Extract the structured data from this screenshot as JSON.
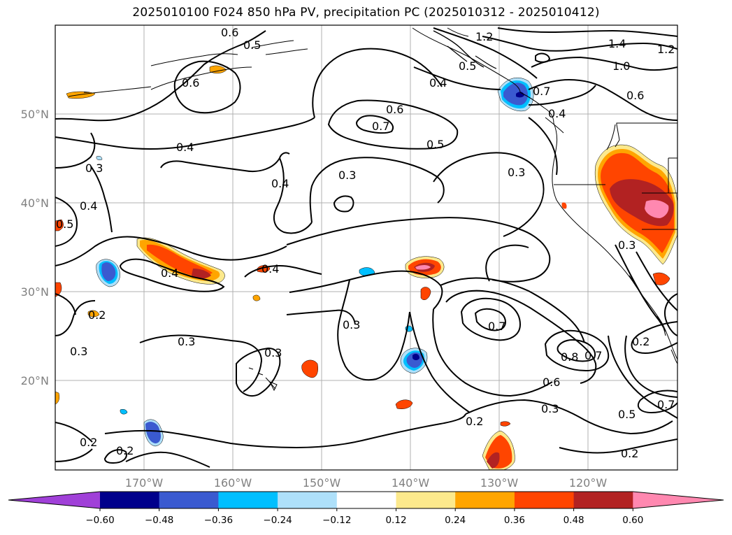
{
  "title": "2025010100 F024 850 hPa PV, precipitation PC (2025010312 - 2025010412)",
  "lat_labels": [
    "50°N",
    "40°N",
    "30°N",
    "20°N"
  ],
  "lon_labels": [
    "170°W",
    "160°W",
    "150°W",
    "140°W",
    "130°W",
    "120°W"
  ],
  "contour_labels": [
    "0.6",
    "0.5",
    "1.2",
    "1.4",
    "1.2",
    "1.0",
    "0.6",
    "0.4",
    "0.6",
    "0.7",
    "0.5",
    "0.4",
    "0.7",
    "0.6",
    "0.4",
    "0.5",
    "0.3",
    "0.4",
    "0.3",
    "0.4",
    "0.5",
    "0.4",
    "0.3",
    "0.4",
    "0.2",
    "0.3",
    "0.3",
    "0.3",
    "0.3",
    "0.7",
    "0.8",
    "0.7",
    "0.6",
    "0.3",
    "0.5",
    "0.7",
    "0.2",
    "0.2",
    "0.2",
    "0.2",
    "0.3",
    "0.2"
  ],
  "colorbar": {
    "ticks": [
      "−0.60",
      "−0.48",
      "−0.36",
      "−0.24",
      "−0.12",
      "0.12",
      "0.24",
      "0.36",
      "0.48",
      "0.60"
    ],
    "colors": [
      "#a040d8",
      "#00008b",
      "#3a5ad0",
      "#00bfff",
      "#aee0fa",
      "#ffffff",
      "#fce98c",
      "#ffa500",
      "#ff4500",
      "#b22222",
      "#ff88b0"
    ]
  },
  "colors": {
    "neg_light": "#aee0fa",
    "neg_mid": "#00bfff",
    "neg_dark": "#3a5ad0",
    "neg_darkest": "#00008b",
    "pos_light": "#fce98c",
    "pos_mid": "#ffa500",
    "pos_high": "#ff4500",
    "pos_higher": "#b22222",
    "pos_max": "#ff88b0"
  }
}
